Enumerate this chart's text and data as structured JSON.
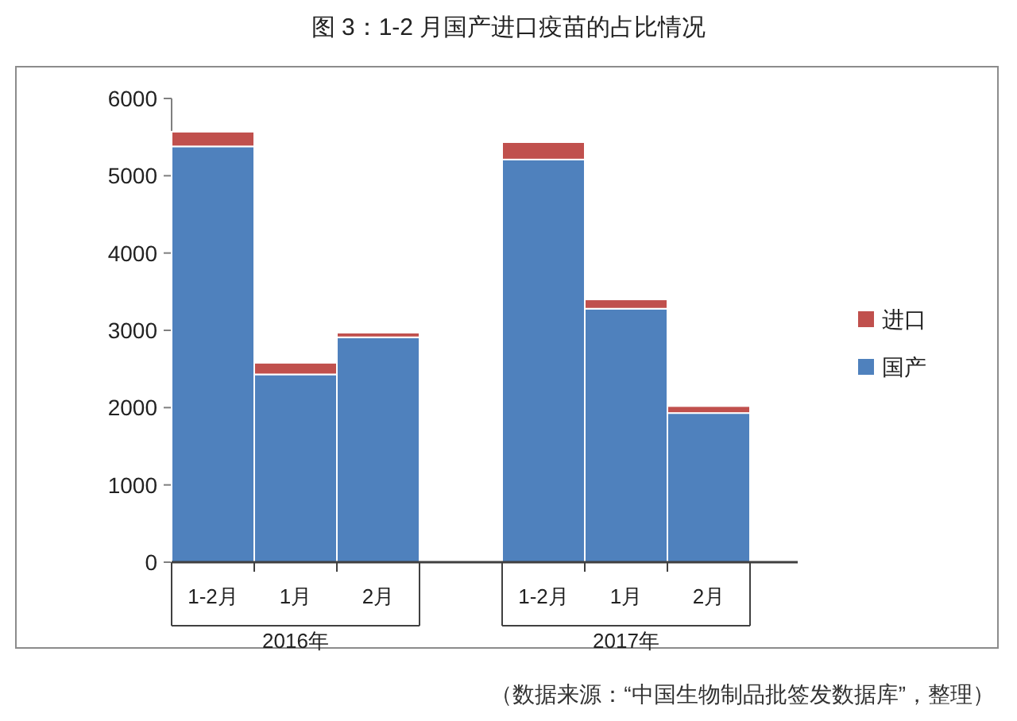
{
  "chart_data": {
    "type": "bar",
    "title": "图 3：1-2 月国产进口疫苗的占比情况",
    "categories": [
      "1-2月",
      "1月",
      "2月",
      null,
      "1-2月",
      "1月",
      "2月"
    ],
    "stacked": true,
    "series": [
      {
        "name": "国产",
        "color": "#4f81bd",
        "values": [
          5380,
          2430,
          2910,
          null,
          5210,
          3280,
          1930
        ]
      },
      {
        "name": "进口",
        "color": "#c0504d",
        "values": [
          190,
          150,
          60,
          null,
          225,
          120,
          90
        ]
      }
    ],
    "ylim": [
      0,
      6000
    ],
    "yticks": [
      0,
      1000,
      2000,
      3000,
      4000,
      5000,
      6000
    ],
    "legend": "right",
    "annotations": [
      "2016年",
      "2017年",
      "（数据来源：“中国生物制品批签发数据库”，整理）"
    ]
  }
}
